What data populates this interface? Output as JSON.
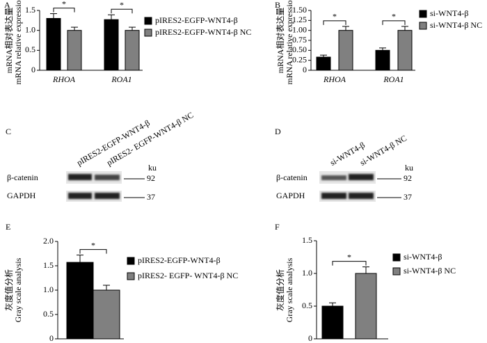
{
  "chart_data": [
    {
      "type": "bar",
      "panel": "A",
      "y_label": [
        "mRNA相对表达量",
        "mRNA relative expression"
      ],
      "categories": [
        "RHOA",
        "ROA1"
      ],
      "series": [
        {
          "name": "pIRES2-EGFP-WNT4-β",
          "color": "#000000",
          "values": [
            1.3,
            1.27
          ],
          "errors": [
            0.12,
            0.12
          ]
        },
        {
          "name": "pIRES2-EGFP-WNT4-β NC",
          "color": "#808080",
          "values": [
            1.0,
            1.0
          ],
          "errors": [
            0.08,
            0.08
          ]
        }
      ],
      "annotations": [
        "*",
        "*"
      ],
      "ylim": [
        0,
        1.5
      ],
      "yticks": [
        0,
        0.5,
        {
          "value": 1,
          "label": "1.0"
        },
        1.5
      ]
    },
    {
      "type": "bar",
      "panel": "B",
      "y_label": [
        "mRNA相对表达量",
        "mRNA relative expression"
      ],
      "categories": [
        "RHOA",
        "ROA1"
      ],
      "series": [
        {
          "name": "si-WNT4-β",
          "color": "#000000",
          "values": [
            0.33,
            0.5
          ],
          "errors": [
            0.05,
            0.06
          ]
        },
        {
          "name": "si-WNT4-β NC",
          "color": "#808080",
          "values": [
            1.0,
            1.0
          ],
          "errors": [
            0.1,
            0.1
          ]
        }
      ],
      "annotations": [
        "*",
        "*"
      ],
      "ylim": [
        0,
        1.5
      ],
      "yticks": [
        0,
        0.25,
        {
          "value": 0.5,
          "label": "0.50"
        },
        0.75,
        {
          "value": 1,
          "label": "1.00"
        },
        1.25,
        {
          "value": 1.5,
          "label": "1.50"
        }
      ]
    },
    {
      "type": "bar",
      "panel": "E",
      "y_label": [
        "灰度值分析",
        "Gray scale analysis"
      ],
      "categories": [
        null
      ],
      "series": [
        {
          "name": "pIRES2-EGFP-WNT4-β",
          "color": "#000000",
          "values": [
            1.57
          ],
          "errors": [
            0.15
          ]
        },
        {
          "name": "pIRES2- EGFP- WNT4-β NC",
          "color": "#808080",
          "values": [
            1.0
          ],
          "errors": [
            0.1
          ]
        }
      ],
      "annotations": [
        "*"
      ],
      "ylim": [
        0,
        2
      ],
      "yticks": [
        0,
        0.5,
        {
          "value": 1,
          "label": "1.0"
        },
        1.5,
        {
          "value": 2,
          "label": "2.0"
        }
      ]
    },
    {
      "type": "bar",
      "panel": "F",
      "y_label": [
        "灰度值分析",
        "Gray scale analysis"
      ],
      "categories": [
        null
      ],
      "series": [
        {
          "name": "si-WNT4-β",
          "color": "#000000",
          "values": [
            0.5
          ],
          "errors": [
            0.05
          ]
        },
        {
          "name": "si-WNT4-β NC",
          "color": "#808080",
          "values": [
            1.0
          ],
          "errors": [
            0.1
          ]
        }
      ],
      "annotations": [
        "*"
      ],
      "ylim": [
        0,
        1.5
      ],
      "yticks": [
        0,
        0.5,
        {
          "value": 1,
          "label": "1.0"
        },
        1.5
      ]
    }
  ],
  "blots": [
    {
      "panel": "C",
      "lanes": [
        "pIRES2-EGFP-WNT4-β",
        "pIRES2- EGFP-WNT4-β NC"
      ],
      "rows": [
        "β-catenin",
        "GAPDH"
      ],
      "unit": "ku",
      "markers": [
        92,
        37
      ]
    },
    {
      "panel": "D",
      "lanes": [
        "si-WNT4-β",
        "si-WNT4-β NC"
      ],
      "rows": [
        "β-catenin",
        "GAPDH"
      ],
      "unit": "ku",
      "markers": [
        92,
        37
      ]
    }
  ]
}
